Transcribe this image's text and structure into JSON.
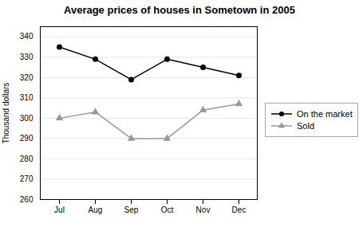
{
  "chart_data": {
    "type": "line",
    "title": "Average prices of houses in Sometown in 2005",
    "ylabel": "Thousand dollars",
    "categories": [
      "Jul",
      "Aug",
      "Sep",
      "Oct",
      "Nov",
      "Dec"
    ],
    "series": [
      {
        "name": "On the market",
        "color": "#000000",
        "marker": "circle",
        "values": [
          335,
          329,
          319,
          329,
          325,
          321
        ]
      },
      {
        "name": "Sold",
        "color": "#999999",
        "marker": "triangle",
        "values": [
          300,
          303,
          290,
          290,
          304,
          307
        ]
      }
    ],
    "ylim": [
      260,
      345
    ],
    "yticks": [
      260,
      270,
      280,
      290,
      300,
      310,
      320,
      330,
      340
    ],
    "grid": true,
    "legend": "right"
  }
}
